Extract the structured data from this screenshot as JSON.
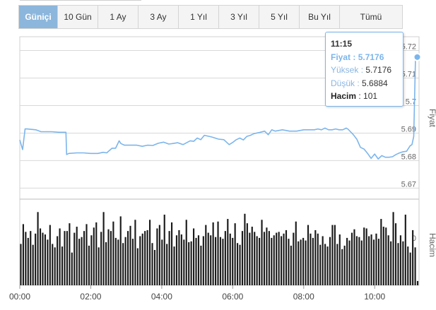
{
  "tabs": [
    "Güniçi",
    "10 Gün",
    "1 Ay",
    "3 Ay",
    "1 Yıl",
    "3 Yıl",
    "5 Yıl",
    "Bu Yıl",
    "Tümü"
  ],
  "active_tab": "Güniçi",
  "tooltip": {
    "time": "11:15",
    "price_label": "Fiyat",
    "price_value": "5.7176",
    "high_label": "Yüksek",
    "high_value": "5.7176",
    "low_label": "Düşük",
    "low_value": "5.6884",
    "volume_label": "Hacim",
    "volume_value": "101"
  },
  "colors": {
    "line": "#7cb5ec",
    "bar": "#1a1a1a",
    "grid": "#d8d8d8",
    "active_tab": "#8cb6dc"
  },
  "chart_data": [
    {
      "type": "line",
      "title": "",
      "xlabel": "",
      "ylabel": "Fiyat",
      "ylim": [
        5.666,
        5.725
      ],
      "yticks": [
        "5.67",
        "5.68",
        "5.69",
        "5.7",
        "5.71",
        "5.72"
      ],
      "xlim": [
        0,
        11.25
      ],
      "xticks": [
        "00:00",
        "02:00",
        "04:00",
        "06:00",
        "08:00",
        "10:00"
      ],
      "x": [
        0.0,
        0.08,
        0.15,
        0.2,
        0.45,
        0.6,
        0.75,
        0.9,
        1.1,
        1.3,
        1.32,
        1.38,
        1.6,
        1.8,
        2.0,
        2.2,
        2.35,
        2.45,
        2.6,
        2.7,
        2.8,
        2.85,
        2.95,
        3.1,
        3.3,
        3.45,
        3.6,
        3.75,
        3.9,
        4.05,
        4.2,
        4.3,
        4.45,
        4.6,
        4.8,
        4.9,
        5.0,
        5.1,
        5.2,
        5.4,
        5.6,
        5.75,
        5.9,
        6.0,
        6.1,
        6.2,
        6.3,
        6.4,
        6.5,
        6.6,
        6.75,
        6.9,
        7.0,
        7.1,
        7.2,
        7.4,
        7.6,
        7.8,
        8.0,
        8.1,
        8.2,
        8.3,
        8.4,
        8.5,
        8.6,
        8.7,
        8.8,
        8.9,
        9.0,
        9.1,
        9.2,
        9.25,
        9.4,
        9.5,
        9.6,
        9.7,
        9.8,
        9.9,
        10.0,
        10.1,
        10.2,
        10.3,
        10.4,
        10.5,
        10.6,
        10.7,
        10.8,
        10.9,
        11.0,
        11.05,
        11.1,
        11.15,
        11.25
      ],
      "values": [
        5.6875,
        5.684,
        5.6915,
        5.6915,
        5.6912,
        5.6905,
        5.6905,
        5.6905,
        5.6903,
        5.6903,
        5.6822,
        5.6826,
        5.6828,
        5.6828,
        5.6826,
        5.6826,
        5.683,
        5.6828,
        5.6845,
        5.6845,
        5.6872,
        5.6862,
        5.6856,
        5.6856,
        5.6856,
        5.6852,
        5.6856,
        5.6855,
        5.6863,
        5.6867,
        5.686,
        5.6862,
        5.6865,
        5.6858,
        5.6872,
        5.687,
        5.6882,
        5.6876,
        5.6892,
        5.6886,
        5.6878,
        5.6876,
        5.6858,
        5.6866,
        5.6876,
        5.6882,
        5.6875,
        5.6888,
        5.6892,
        5.6898,
        5.6902,
        5.6907,
        5.6894,
        5.6912,
        5.6907,
        5.6912,
        5.6907,
        5.6907,
        5.6912,
        5.6912,
        5.6912,
        5.6912,
        5.6915,
        5.6912,
        5.6918,
        5.6912,
        5.6912,
        5.6915,
        5.6912,
        5.6912,
        5.6918,
        5.6914,
        5.6894,
        5.6877,
        5.6848,
        5.6842,
        5.6826,
        5.6808,
        5.6824,
        5.6806,
        5.6818,
        5.6812,
        5.6812,
        5.6814,
        5.6822,
        5.6828,
        5.6832,
        5.6834,
        5.6854,
        5.6858,
        5.6888,
        5.7176,
        5.7176
      ]
    },
    {
      "type": "bar",
      "title": "",
      "xlabel": "",
      "ylabel": "Hacim",
      "ylim": [
        0,
        1
      ],
      "yticks": [
        "0"
      ],
      "values": [
        0.48,
        0.71,
        0.62,
        0.55,
        0.63,
        0.47,
        0.6,
        0.85,
        0.66,
        0.61,
        0.59,
        0.53,
        0.7,
        0.48,
        0.44,
        0.57,
        0.66,
        0.45,
        0.63,
        0.63,
        0.72,
        0.38,
        0.61,
        0.68,
        0.54,
        0.56,
        0.63,
        0.71,
        0.46,
        0.58,
        0.67,
        0.73,
        0.44,
        0.62,
        0.85,
        0.5,
        0.65,
        0.63,
        0.74,
        0.55,
        0.53,
        0.8,
        0.49,
        0.56,
        0.63,
        0.69,
        0.54,
        0.76,
        0.43,
        0.57,
        0.6,
        0.63,
        0.64,
        0.76,
        0.49,
        0.41,
        0.66,
        0.7,
        0.53,
        0.82,
        0.48,
        0.63,
        0.73,
        0.45,
        0.58,
        0.64,
        0.59,
        0.53,
        0.76,
        0.5,
        0.51,
        0.66,
        0.55,
        0.58,
        0.46,
        0.57,
        0.7,
        0.61,
        0.58,
        0.73,
        0.56,
        0.74,
        0.56,
        0.54,
        0.63,
        0.77,
        0.6,
        0.55,
        0.72,
        0.49,
        0.47,
        0.63,
        0.83,
        0.72,
        0.61,
        0.68,
        0.62,
        0.57,
        0.55,
        0.76,
        0.62,
        0.67,
        0.63,
        0.55,
        0.58,
        0.61,
        0.62,
        0.57,
        0.6,
        0.64,
        0.54,
        0.46,
        0.61,
        0.74,
        0.51,
        0.53,
        0.55,
        0.52,
        0.7,
        0.6,
        0.55,
        0.64,
        0.6,
        0.47,
        0.57,
        0.48,
        0.45,
        0.56,
        0.7,
        0.7,
        0.48,
        0.59,
        0.42,
        0.46,
        0.55,
        0.52,
        0.61,
        0.65,
        0.57,
        0.56,
        0.52,
        0.67,
        0.66,
        0.57,
        0.59,
        0.53,
        0.6,
        0.54,
        0.77,
        0.68,
        0.67,
        0.58,
        0.51,
        0.85,
        0.72,
        0.49,
        0.58,
        0.51,
        0.82,
        0.45,
        0.38,
        0.64,
        0.44,
        0.05
      ]
    }
  ]
}
